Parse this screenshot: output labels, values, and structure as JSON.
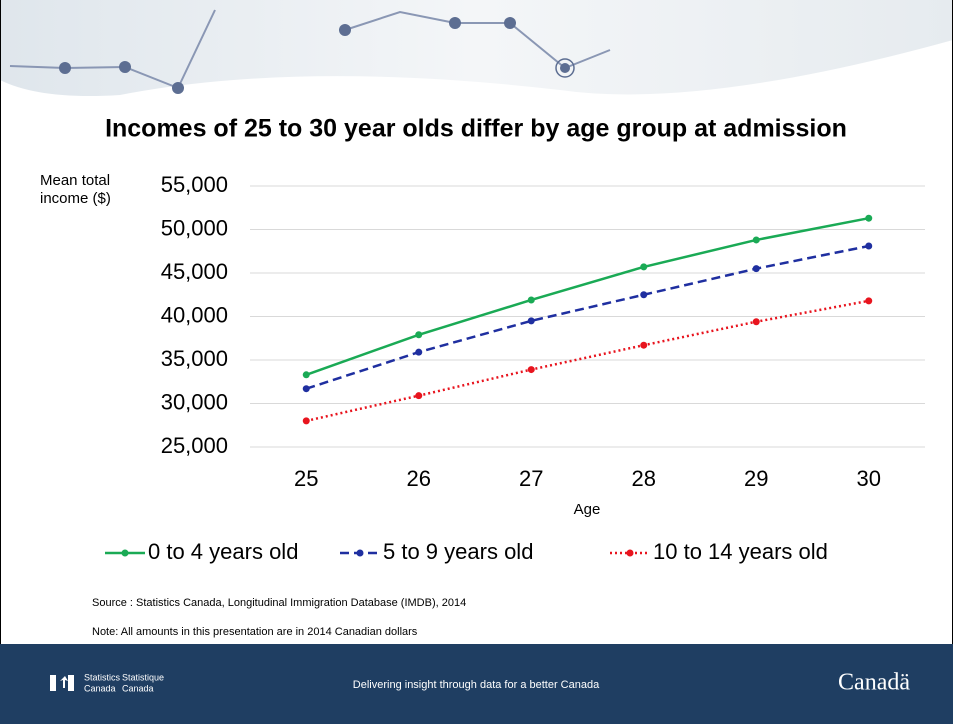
{
  "chart_data": {
    "type": "line",
    "title": "Incomes of 25 to 30 year olds differ by age group at admission",
    "y_label": "Mean total income ($)",
    "x_label": "Age",
    "x": [
      25,
      26,
      27,
      28,
      29,
      30
    ],
    "xlim": [
      24.5,
      30.5
    ],
    "xticks": [
      25,
      26,
      27,
      28,
      29,
      30
    ],
    "ylim": [
      25000,
      55000
    ],
    "yticks": [
      {
        "value": 25000,
        "label": "25,000"
      },
      {
        "value": 30000,
        "label": "30,000"
      },
      {
        "value": 35000,
        "label": "35,000"
      },
      {
        "value": 40000,
        "label": "40,000"
      },
      {
        "value": 45000,
        "label": "45,000"
      },
      {
        "value": 50000,
        "label": "50,000"
      },
      {
        "value": 55000,
        "label": "55,000"
      }
    ],
    "grid": true,
    "legend": "bottom",
    "series": [
      {
        "name": "0 to 4 years old",
        "color": "#1aaa55",
        "dash": "solid",
        "values": [
          33300,
          37900,
          41900,
          45700,
          48800,
          51300
        ]
      },
      {
        "name": "5 to 9 years old",
        "color": "#1f2fa0",
        "dash": "dashed",
        "values": [
          31700,
          35900,
          39500,
          42500,
          45500,
          48100
        ]
      },
      {
        "name": "10 to 14 years old",
        "color": "#e8141e",
        "dash": "dotted",
        "values": [
          28000,
          30900,
          33900,
          36700,
          39400,
          41800
        ]
      }
    ]
  },
  "source": "Source : Statistics Canada, Longitudinal Immigration Database (IMDB), 2014",
  "note": "Note: All amounts in this presentation are in 2014 Canadian dollars",
  "footer": {
    "agency_en": [
      "Statistics",
      "Canada"
    ],
    "agency_fr": [
      "Statistique",
      "Canada"
    ],
    "tagline": "Delivering insight through data for a better Canada",
    "wordmark": "Canadä"
  }
}
